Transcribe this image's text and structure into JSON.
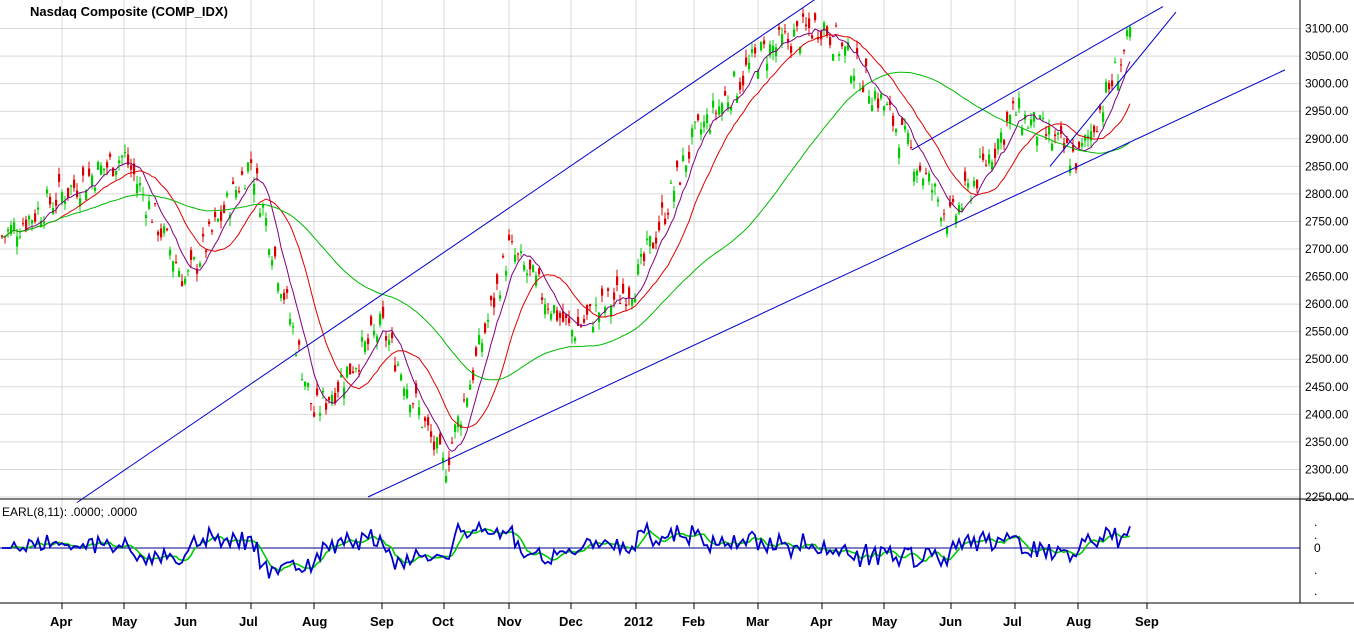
{
  "chart_data": [
    {
      "type": "candlestick",
      "title": "Nasdaq Composite (COMP_IDX)",
      "y_ticks": [
        "3100.00",
        "3050.00",
        "3000.00",
        "2950.00",
        "2900.00",
        "2850.00",
        "2800.00",
        "2750.00",
        "2700.00",
        "2650.00",
        "2600.00",
        "2550.00",
        "2500.00",
        "2450.00",
        "2400.00",
        "2350.00",
        "2300.00",
        "2250.00"
      ],
      "ylim": [
        2250,
        3150
      ],
      "x_labels": [
        "Apr",
        "May",
        "Jun",
        "Jul",
        "Aug",
        "Sep",
        "Oct",
        "Nov",
        "Dec",
        "2012",
        "Feb",
        "Mar",
        "Apr",
        "May",
        "Jun",
        "Jul",
        "Aug",
        "Sep"
      ],
      "grid": true,
      "colors": {
        "up": "#00cc00",
        "down": "#dd0000",
        "ma_short": "#800080",
        "ma_mid": "#dd0000",
        "ma_long": "#00bb00",
        "trendline": "#0000cc",
        "grid": "#d8d8d8",
        "background": "#ffffff"
      },
      "key_points": [
        {
          "x": "Mar 2011",
          "close": 2720
        },
        {
          "x": "Apr 2011",
          "close": 2800
        },
        {
          "x": "May 2011",
          "close": 2870
        },
        {
          "x": "Jun 2011",
          "close": 2640
        },
        {
          "x": "Jul 2011",
          "close": 2860
        },
        {
          "x": "Aug 2011",
          "close": 2400
        },
        {
          "x": "Sep 2011",
          "close": 2560
        },
        {
          "x": "Oct 2011",
          "close": 2300
        },
        {
          "x": "Nov 2011",
          "close": 2700
        },
        {
          "x": "Dec 2011",
          "close": 2550
        },
        {
          "x": "2012",
          "close": 2640
        },
        {
          "x": "Feb 2012",
          "close": 2900
        },
        {
          "x": "Mar 2012",
          "close": 3050
        },
        {
          "x": "Apr 2012",
          "close": 3110
        },
        {
          "x": "May 2012",
          "close": 2960
        },
        {
          "x": "Jun 2012",
          "close": 2750
        },
        {
          "x": "Jul 2012",
          "close": 2950
        },
        {
          "x": "Aug 2012",
          "close": 2860
        },
        {
          "x": "Sep 2012",
          "close": 3080
        }
      ]
    },
    {
      "type": "line",
      "label": "EARL(8,11): .0000; .0000",
      "y_ticks": [
        ".",
        ".",
        "0",
        ".",
        "."
      ],
      "zero_line": true,
      "colors": {
        "fast": "#0000cc",
        "slow": "#00cc00",
        "slow_down": "#dd00dd",
        "zero": "#00008b"
      }
    }
  ]
}
